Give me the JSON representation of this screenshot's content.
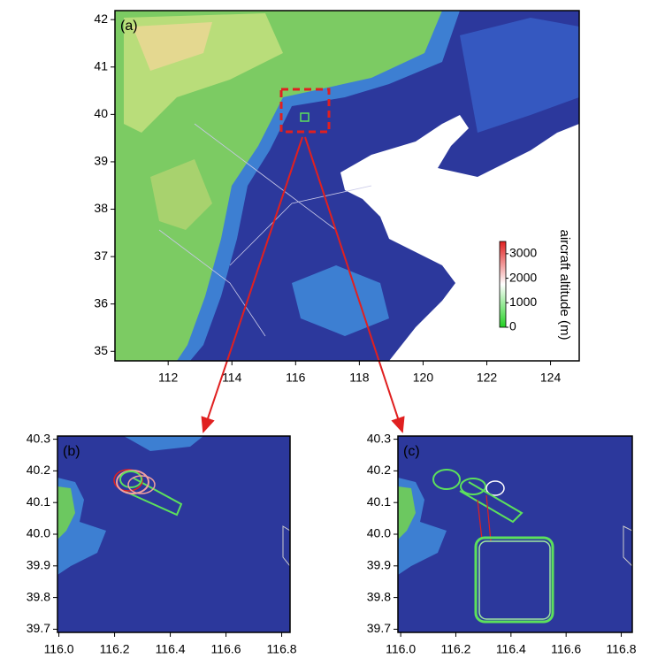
{
  "chart_data": [
    {
      "type": "map",
      "label": "(a)",
      "xlim": [
        110.33,
        124.9
      ],
      "ylim": [
        34.8,
        42.19
      ],
      "xticks": [
        112,
        114,
        116,
        118,
        120,
        122,
        124
      ],
      "yticks": [
        35,
        36,
        37,
        38,
        39,
        40,
        41,
        42
      ],
      "colorbar": {
        "label": "aircraft altitude (m)",
        "clim": [
          0,
          3500
        ],
        "ticks": [
          0,
          1000,
          2000,
          3000
        ],
        "colors": [
          "#22d022",
          "#ffffff",
          "#e02020"
        ]
      }
    },
    {
      "type": "map",
      "label": "(b)",
      "xlim": [
        115.995,
        116.83
      ],
      "ylim": [
        39.69,
        40.31
      ],
      "xticks": [
        {
          "value": 116.0,
          "label": "116.0"
        },
        {
          "value": 116.2,
          "label": "116.2"
        },
        {
          "value": 116.4,
          "label": "116.4"
        },
        {
          "value": 116.6,
          "label": "116.6"
        },
        {
          "value": 116.8,
          "label": "116.8"
        }
      ],
      "yticks": [
        {
          "value": 39.7,
          "label": "39.7"
        },
        {
          "value": 39.8,
          "label": "39.8"
        },
        {
          "value": 39.9,
          "label": "39.9"
        },
        {
          "value": 40.0,
          "label": "40.0"
        },
        {
          "value": 40.1,
          "label": "40.1"
        },
        {
          "value": 40.2,
          "label": "40.2"
        },
        {
          "value": 40.3,
          "label": "40.3"
        }
      ]
    },
    {
      "type": "map",
      "label": "(c)",
      "xlim": [
        115.99,
        116.84
      ],
      "ylim": [
        39.69,
        40.31
      ],
      "xticks": [
        {
          "value": 116.0,
          "label": "116.0"
        },
        {
          "value": 116.2,
          "label": "116.2"
        },
        {
          "value": 116.4,
          "label": "116.4"
        },
        {
          "value": 116.6,
          "label": "116.6"
        },
        {
          "value": 116.8,
          "label": "116.8"
        }
      ],
      "yticks": [
        {
          "value": 39.7,
          "label": "39.7"
        },
        {
          "value": 39.8,
          "label": "39.8"
        },
        {
          "value": 39.9,
          "label": "39.9"
        },
        {
          "value": 40.0,
          "label": "40.0"
        },
        {
          "value": 40.1,
          "label": "40.1"
        },
        {
          "value": 40.2,
          "label": "40.2"
        },
        {
          "value": 40.3,
          "label": "40.3"
        }
      ]
    }
  ]
}
